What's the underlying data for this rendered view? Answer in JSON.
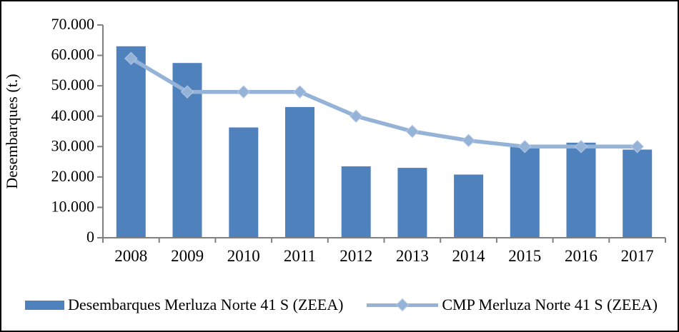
{
  "frame": {
    "background": "#ffffff",
    "border_color": "#000000"
  },
  "chart_data": {
    "type": "bar",
    "title": "",
    "xlabel": "",
    "ylabel": "Desembarques (t.)",
    "categories": [
      "2008",
      "2009",
      "2010",
      "2011",
      "2012",
      "2013",
      "2014",
      "2015",
      "2016",
      "2017"
    ],
    "series": [
      {
        "name": "Desembarques Merluza Norte 41 S (ZEEA)",
        "type": "bar",
        "color": "#4F81BD",
        "values": [
          63000,
          57500,
          36300,
          43000,
          23500,
          23000,
          20800,
          30000,
          31300,
          29000
        ]
      },
      {
        "name": "CMP Merluza Norte 41 S (ZEEA)",
        "type": "line",
        "marker": "diamond",
        "color": "#95B3D7",
        "values": [
          59000,
          48000,
          48000,
          48000,
          40000,
          35000,
          32000,
          30000,
          30000,
          30000
        ]
      }
    ],
    "ylim": [
      0,
      70000
    ],
    "ytick_interval": 10000,
    "ytick_labels": [
      "0",
      "10.000",
      "20.000",
      "30.000",
      "40.000",
      "50.000",
      "60.000",
      "70.000"
    ],
    "grid": false,
    "legend_position": "bottom",
    "axis_color": "#808080",
    "text_color": "#000000"
  }
}
